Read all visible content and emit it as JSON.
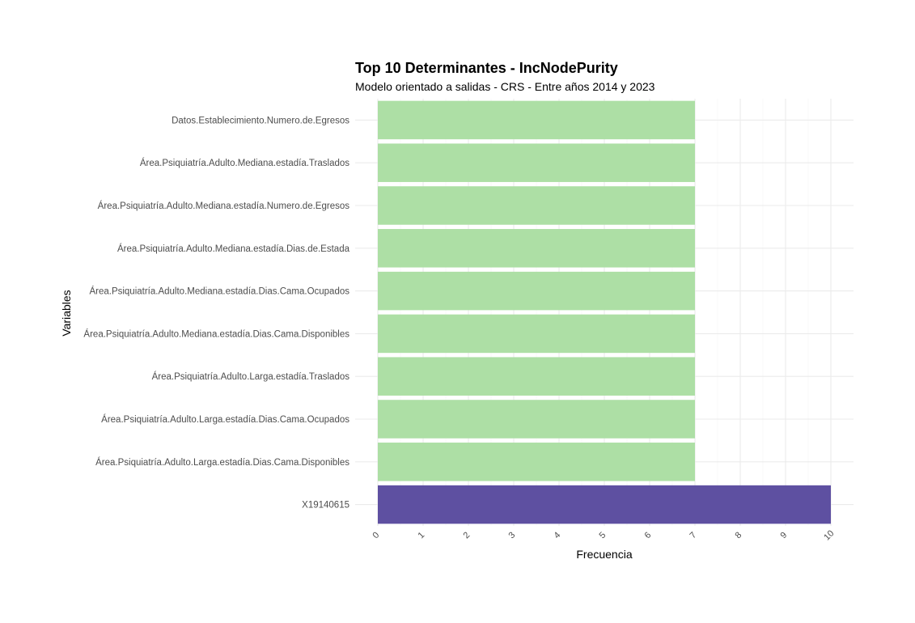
{
  "chart_data": {
    "type": "bar",
    "orientation": "horizontal",
    "title": "Top 10 Determinantes - IncNodePurity",
    "subtitle": "Modelo orientado a salidas - CRS - Entre años 2014 y 2023",
    "xlabel": "Frecuencia",
    "ylabel": "Variables",
    "xlim": [
      0,
      10
    ],
    "x_ticks": [
      "0",
      "1",
      "2",
      "3",
      "4",
      "5",
      "6",
      "7",
      "8",
      "9",
      "10"
    ],
    "grid": true,
    "categories": [
      "Datos.Establecimiento.Numero.de.Egresos",
      "Área.Psiquiatría.Adulto.Mediana.estadía.Traslados",
      "Área.Psiquiatría.Adulto.Mediana.estadía.Numero.de.Egresos",
      "Área.Psiquiatría.Adulto.Mediana.estadía.Dias.de.Estada",
      "Área.Psiquiatría.Adulto.Mediana.estadía.Dias.Cama.Ocupados",
      "Área.Psiquiatría.Adulto.Mediana.estadía.Dias.Cama.Disponibles",
      "Área.Psiquiatría.Adulto.Larga.estadía.Traslados",
      "Área.Psiquiatría.Adulto.Larga.estadía.Dias.Cama.Ocupados",
      "Área.Psiquiatría.Adulto.Larga.estadía.Dias.Cama.Disponibles",
      "X19140615"
    ],
    "values": [
      7,
      7,
      7,
      7,
      7,
      7,
      7,
      7,
      7,
      10
    ],
    "colors": [
      "#addfa5",
      "#addfa5",
      "#addfa5",
      "#addfa5",
      "#addfa5",
      "#addfa5",
      "#addfa5",
      "#addfa5",
      "#addfa5",
      "#5e50a1"
    ]
  }
}
